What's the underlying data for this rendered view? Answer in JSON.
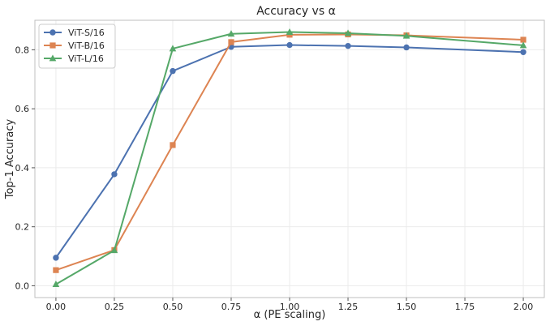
{
  "chart_data": {
    "type": "line",
    "title": "Accuracy vs α",
    "xlabel": "α (PE scaling)",
    "ylabel": "Top-1 Accuracy",
    "xlim": [
      -0.09,
      2.09
    ],
    "ylim": [
      -0.04,
      0.9
    ],
    "xticks": [
      0.0,
      0.25,
      0.5,
      0.75,
      1.0,
      1.25,
      1.5,
      1.75,
      2.0
    ],
    "xtick_labels": [
      "0.00",
      "0.25",
      "0.50",
      "0.75",
      "1.00",
      "1.25",
      "1.50",
      "1.75",
      "2.00"
    ],
    "yticks": [
      0.0,
      0.2,
      0.4,
      0.6,
      0.8
    ],
    "ytick_labels": [
      "0.0",
      "0.2",
      "0.4",
      "0.6",
      "0.8"
    ],
    "grid": true,
    "legend_position": "top-left",
    "x": [
      0.0,
      0.25,
      0.5,
      0.75,
      1.0,
      1.25,
      1.5,
      2.0
    ],
    "series": [
      {
        "name": "ViT-S/16",
        "color": "#4c72b0",
        "marker": "circle",
        "values": [
          0.095,
          0.378,
          0.728,
          0.81,
          0.816,
          0.813,
          0.808,
          0.792
        ]
      },
      {
        "name": "ViT-B/16",
        "color": "#dd8452",
        "marker": "square",
        "values": [
          0.053,
          0.121,
          0.477,
          0.826,
          0.851,
          0.852,
          0.849,
          0.834
        ]
      },
      {
        "name": "ViT-L/16",
        "color": "#55a868",
        "marker": "triangle",
        "values": [
          0.005,
          0.12,
          0.804,
          0.854,
          0.86,
          0.856,
          0.847,
          0.815
        ]
      }
    ]
  }
}
